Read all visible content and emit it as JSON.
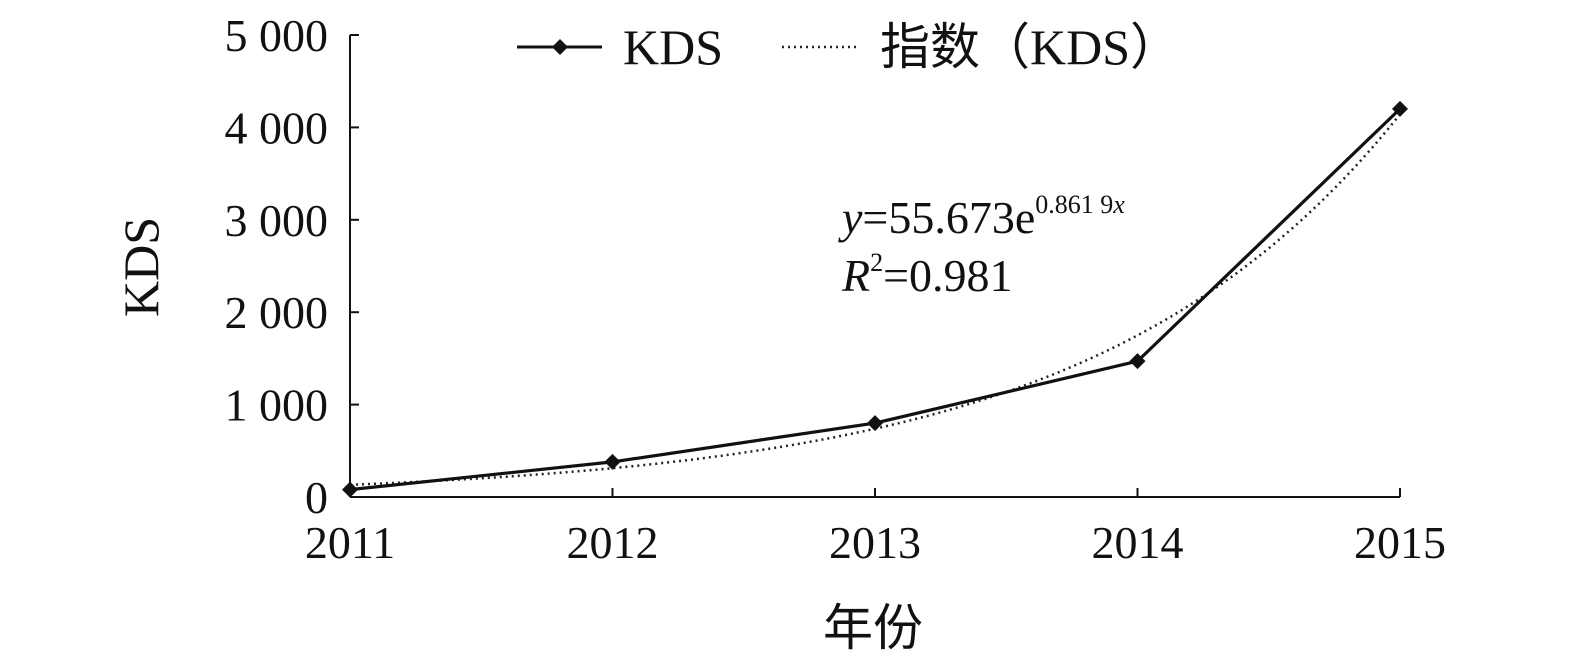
{
  "chart_data": {
    "type": "line",
    "x_categories": [
      "2011",
      "2012",
      "2013",
      "2014",
      "2015"
    ],
    "y_tick_labels": [
      "0",
      "1 000",
      "2 000",
      "3 000",
      "4 000",
      "5 000"
    ],
    "y_ticks": [
      0,
      1000,
      2000,
      3000,
      4000,
      5000
    ],
    "ylim": [
      0,
      5000
    ],
    "xlabel": "年份",
    "ylabel": "KDS",
    "grid": false,
    "legend_position": "top",
    "series": [
      {
        "name": "KDS",
        "style": "solid-line-diamond-markers",
        "values": [
          80,
          380,
          800,
          1470,
          4200
        ]
      },
      {
        "name": "指数（KDS）",
        "style": "dotted-trendline",
        "trend": "exponential",
        "coefficient": 55.673,
        "exponent_rate": 0.8619
      }
    ],
    "annotation": {
      "equation_y": "y",
      "equation_eq": "=55.673e",
      "equation_exp": "0.861 9",
      "equation_x": "x",
      "r2_R": "R",
      "r2_sup": "2",
      "r2_value": "=0.981"
    },
    "colors": {
      "line": "#111111",
      "marker": "#111111",
      "trend": "#222222"
    }
  }
}
